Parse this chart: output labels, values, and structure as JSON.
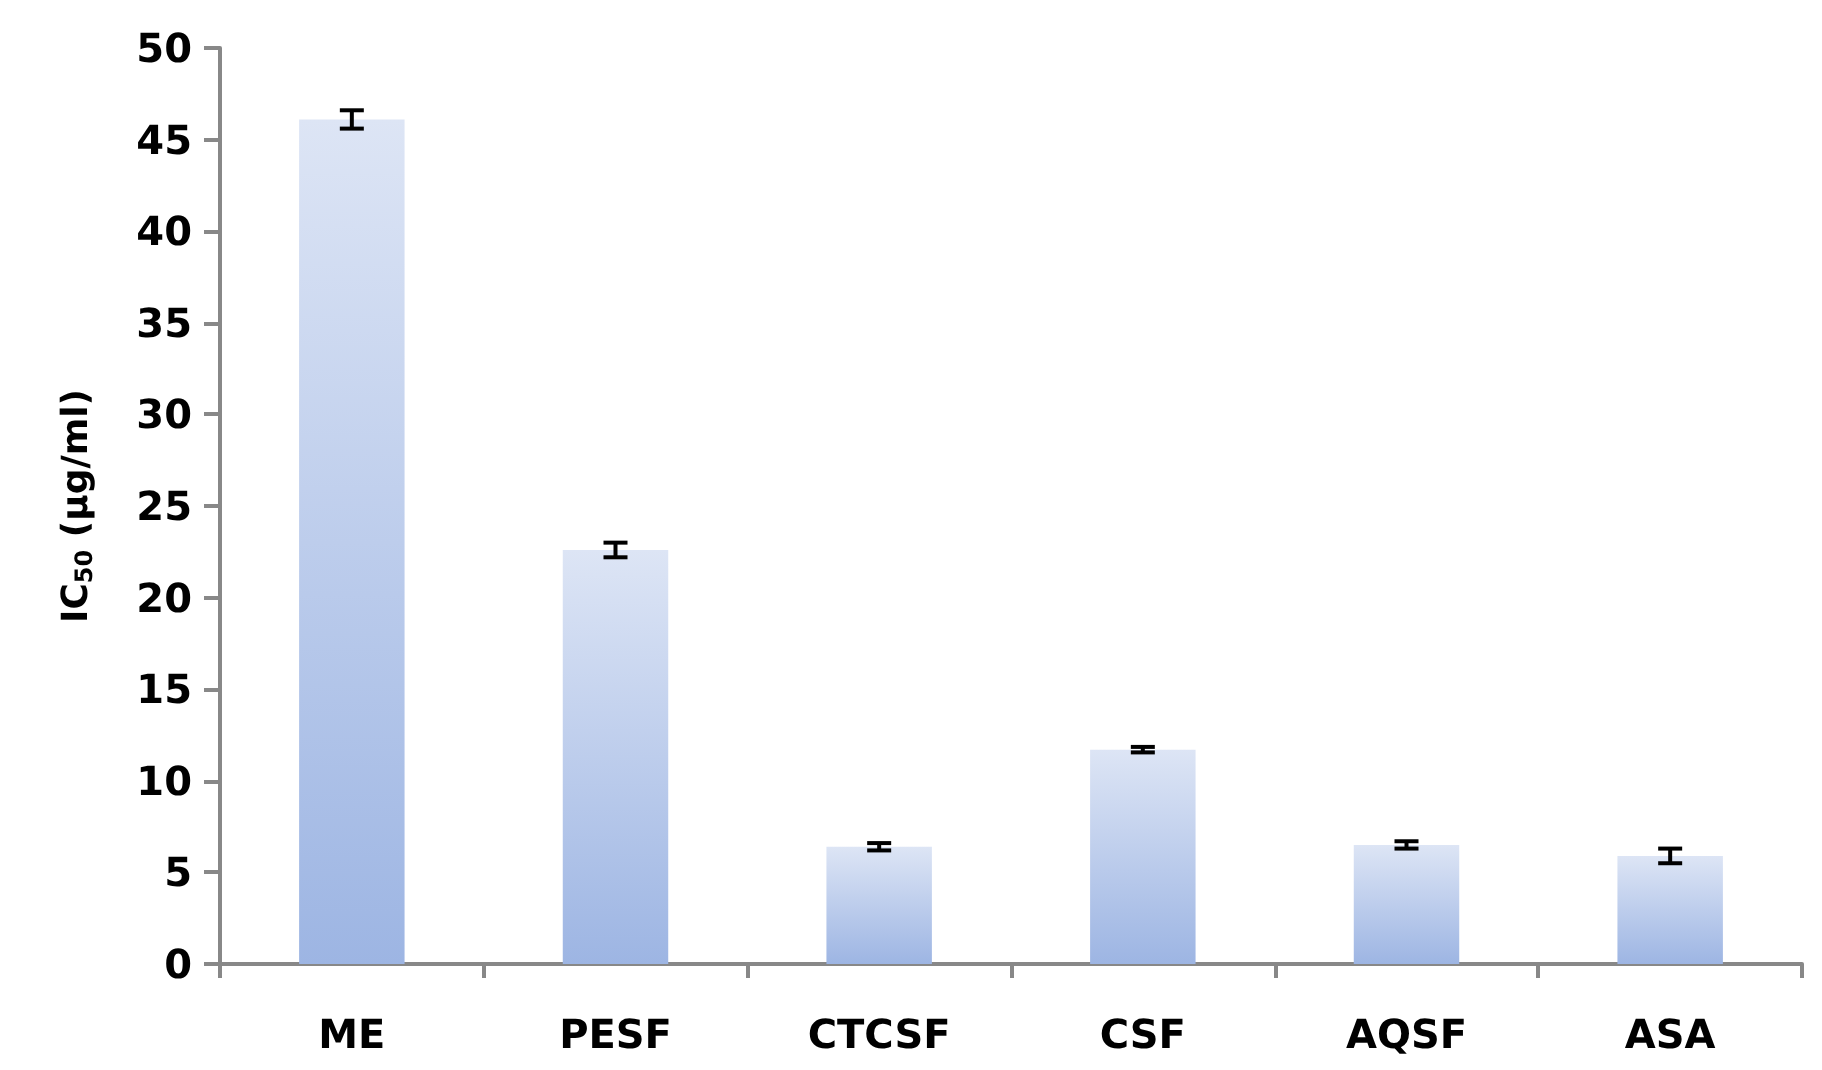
{
  "chart_data": {
    "type": "bar",
    "ylabel": "IC$_{50}$ (µg/ml)",
    "categories": [
      "ME",
      "PESF",
      "CTCSF",
      "CSF",
      "AQSF",
      "ASA"
    ],
    "values": [
      46.1,
      22.6,
      6.4,
      11.7,
      6.5,
      5.9
    ],
    "errors": [
      0.5,
      0.4,
      0.2,
      0.15,
      0.2,
      0.4
    ],
    "color": "#9db5e3",
    "ylim": [
      0,
      50
    ],
    "yticks": [
      0,
      5,
      10,
      15,
      20,
      25,
      30,
      35,
      40,
      45,
      50
    ],
    "grid": false
  }
}
